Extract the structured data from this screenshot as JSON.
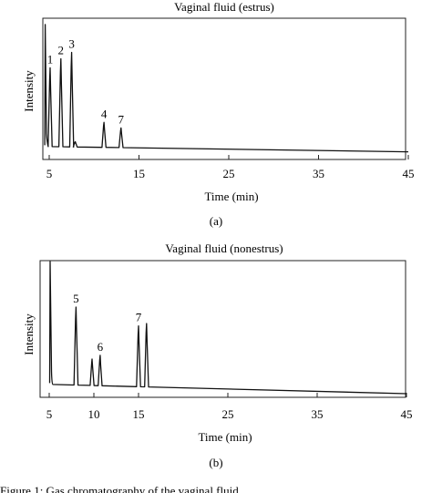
{
  "chart_data": [
    {
      "panel_label": "(a)",
      "title": "Vaginal fluid (estrus)",
      "type": "line",
      "xlabel": "Time (min)",
      "ylabel": "Intensity",
      "xlim": [
        4,
        45
      ],
      "ylim": [
        0,
        100
      ],
      "xticks": [
        {
          "value": 5,
          "label": "5"
        },
        {
          "value": 15,
          "label": "15"
        },
        {
          "value": 25,
          "label": "25"
        },
        {
          "value": 35,
          "label": "35"
        },
        {
          "value": 45,
          "label": "45"
        }
      ],
      "baseline": [
        {
          "x": 4.8,
          "y": 5
        },
        {
          "x": 45,
          "y": 1
        }
      ],
      "initial_spike": {
        "x": 4.55,
        "y": 98
      },
      "peaks": [
        {
          "label": "1",
          "time": 5.1,
          "height": 60
        },
        {
          "label": "2",
          "time": 6.3,
          "height": 67
        },
        {
          "label": "3",
          "time": 7.5,
          "height": 72
        },
        {
          "label": "",
          "time": 7.9,
          "height": 4
        },
        {
          "label": "4",
          "time": 11.1,
          "height": 19
        },
        {
          "label": "7",
          "time": 13.0,
          "height": 15
        }
      ],
      "grid": false
    },
    {
      "panel_label": "(b)",
      "title": "Vaginal fluid (nonestrus)",
      "type": "line",
      "xlabel": "Time (min)",
      "ylabel": "Intensity",
      "xlim": [
        4,
        45
      ],
      "ylim": [
        0,
        100
      ],
      "xticks": [
        {
          "value": 5,
          "label": "5"
        },
        {
          "value": 10,
          "label": "10"
        },
        {
          "value": 15,
          "label": "15"
        },
        {
          "value": 25,
          "label": "25"
        },
        {
          "value": 35,
          "label": "35"
        },
        {
          "value": 45,
          "label": "45"
        }
      ],
      "baseline": [
        {
          "x": 5.3,
          "y": 7
        },
        {
          "x": 45,
          "y": 0
        }
      ],
      "initial_spike": {
        "x": 5.1,
        "y": 100
      },
      "peaks": [
        {
          "label": "5",
          "time": 8.0,
          "height": 59
        },
        {
          "label": "",
          "time": 9.8,
          "height": 20
        },
        {
          "label": "6",
          "time": 10.7,
          "height": 23
        },
        {
          "label": "7",
          "time": 15.0,
          "height": 46
        },
        {
          "label": "",
          "time": 15.9,
          "height": 48
        }
      ],
      "grid": false
    }
  ],
  "caption_fragment": "Figure 1: Gas chromatography of the vaginal fluid..."
}
